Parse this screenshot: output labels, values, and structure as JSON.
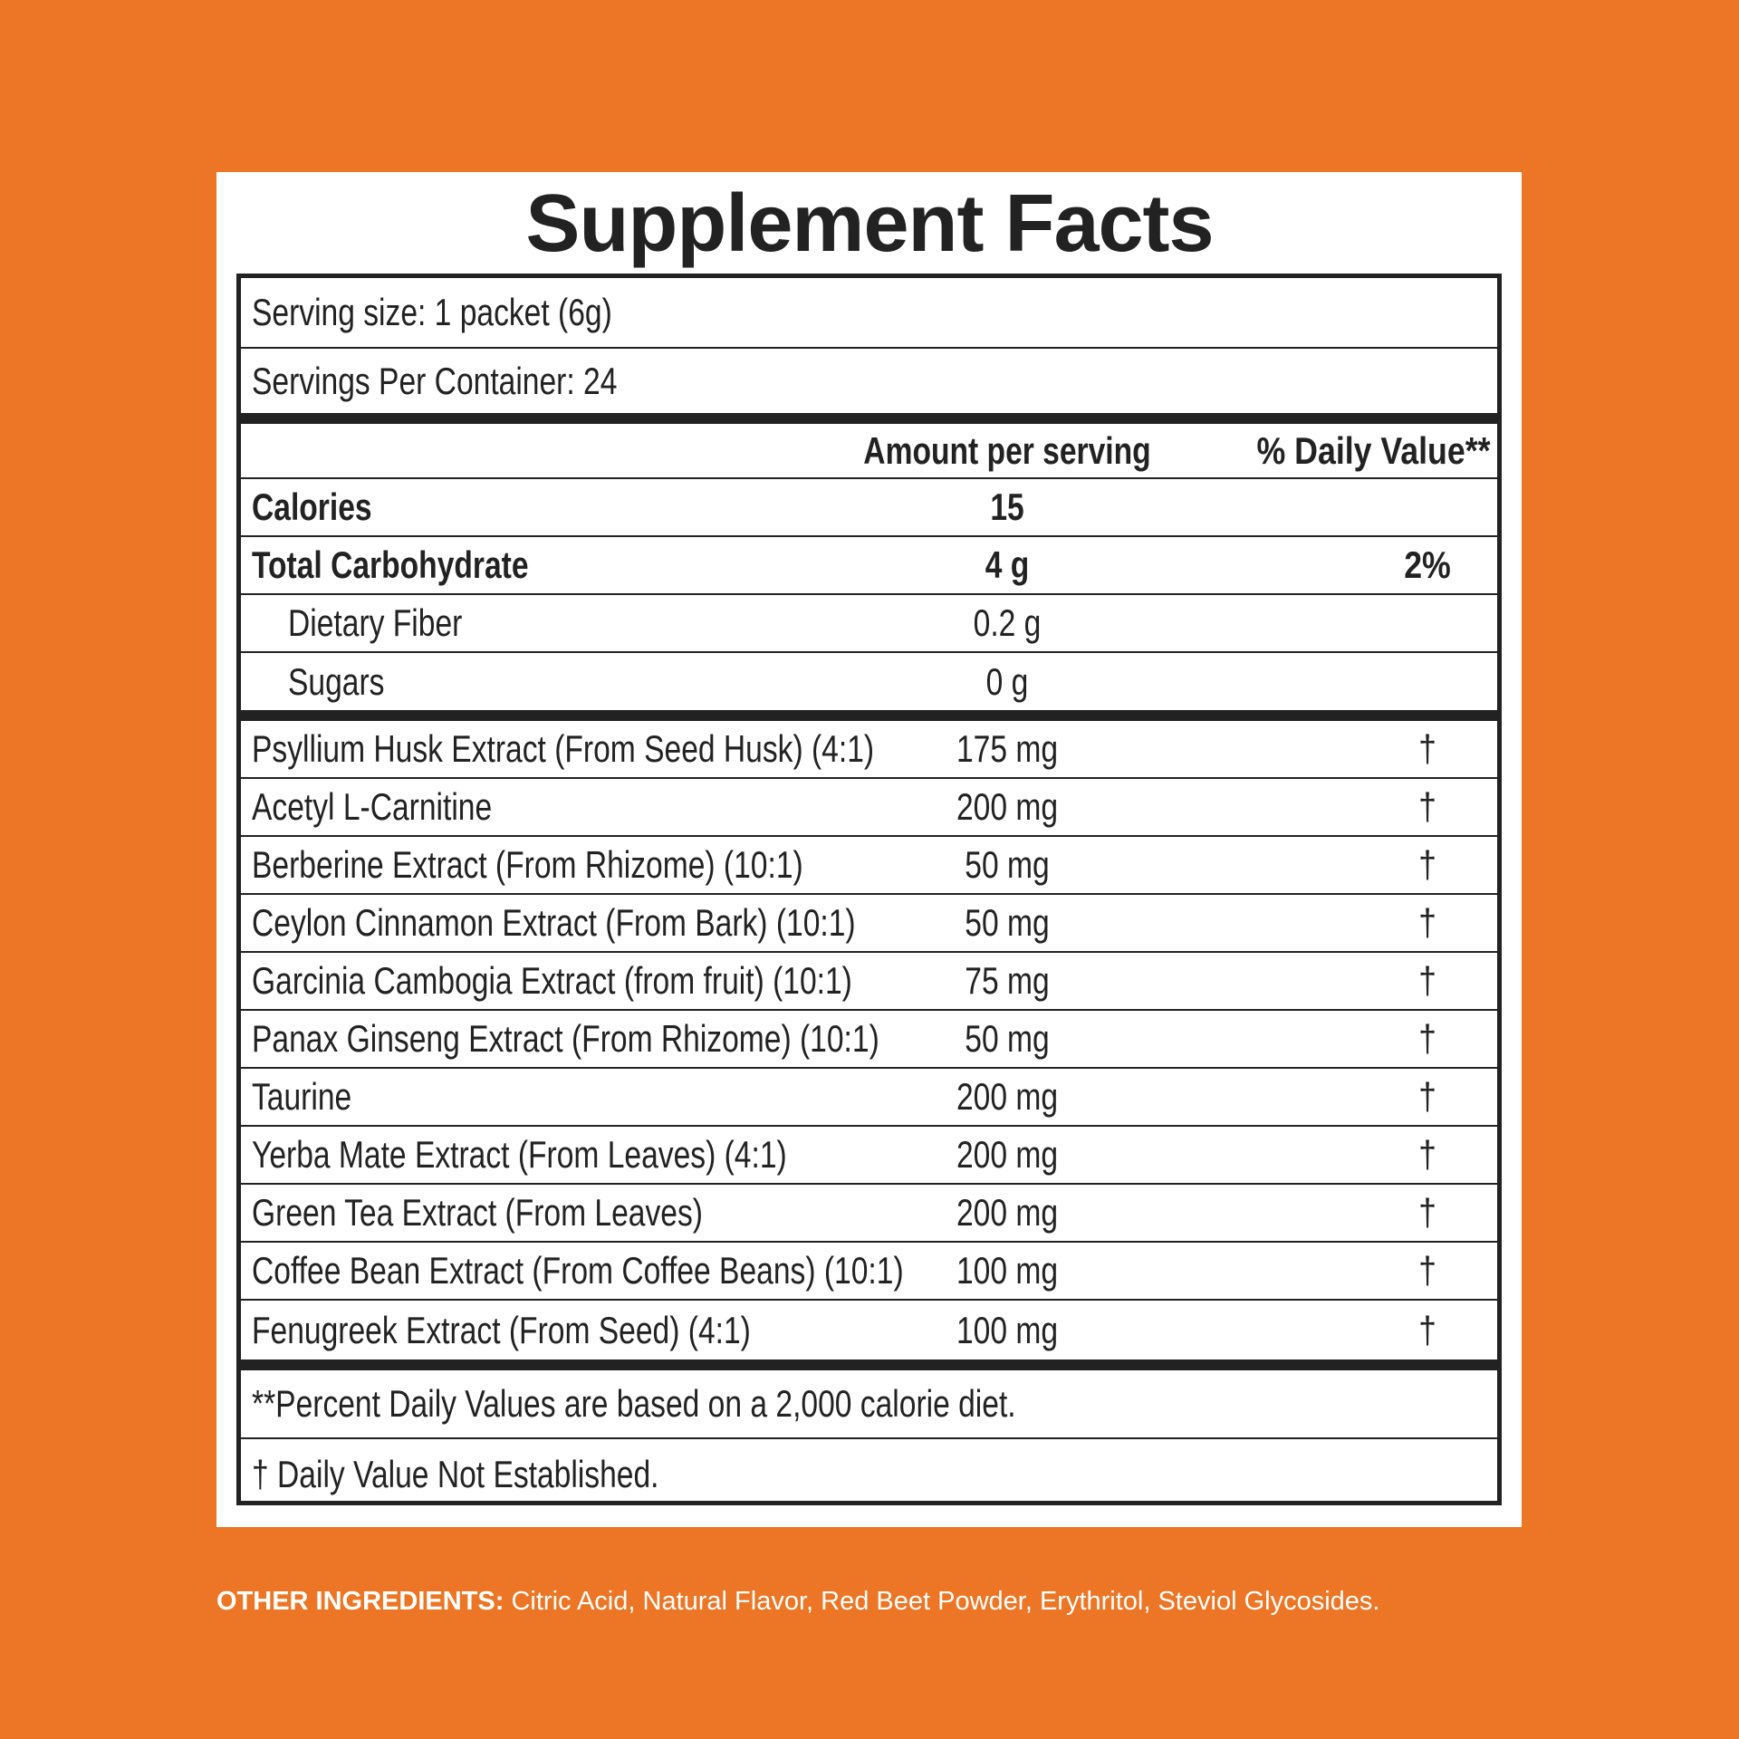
{
  "title": "Supplement Facts",
  "serving_size": "Serving size: 1 packet (6g)",
  "servings_per_container": "Servings Per Container: 24",
  "header": {
    "amount": "Amount per serving",
    "daily_value": "% Daily Value**"
  },
  "nutrients": [
    {
      "name": "Calories",
      "amount": "15",
      "indent": false
    },
    {
      "name": "Total Carbohydrate",
      "amount": "4 g",
      "daily_value": "2%",
      "indent": false
    },
    {
      "name": "Dietary Fiber",
      "amount": "0.2 g",
      "indent": true
    },
    {
      "name": "Sugars",
      "amount": "0 g",
      "indent": true
    }
  ],
  "ingredients": [
    {
      "name": "Psyllium Husk Extract (From Seed Husk) (4:1)",
      "amount": "175 mg",
      "daily_value": "†"
    },
    {
      "name": "Acetyl L-Carnitine",
      "amount": "200 mg",
      "daily_value": "†"
    },
    {
      "name": "Berberine Extract (From Rhizome) (10:1)",
      "amount": "50 mg",
      "daily_value": "†"
    },
    {
      "name": "Ceylon Cinnamon Extract (From Bark) (10:1)",
      "amount": "50 mg",
      "daily_value": "†"
    },
    {
      "name": "Garcinia Cambogia Extract (from fruit) (10:1)",
      "amount": "75 mg",
      "daily_value": "†"
    },
    {
      "name": "Panax Ginseng Extract (From Rhizome) (10:1)",
      "amount": "50 mg",
      "daily_value": "†"
    },
    {
      "name": "Taurine",
      "amount": "200 mg",
      "daily_value": "†"
    },
    {
      "name": "Yerba Mate Extract (From Leaves) (4:1)",
      "amount": "200 mg",
      "daily_value": "†"
    },
    {
      "name": "Green Tea Extract (From Leaves)",
      "amount": "200 mg",
      "daily_value": "†"
    },
    {
      "name": "Coffee Bean Extract (From Coffee Beans) (10:1)",
      "amount": "100 mg",
      "daily_value": "†"
    },
    {
      "name": "Fenugreek Extract (From Seed) (4:1)",
      "amount": "100 mg",
      "daily_value": "†"
    }
  ],
  "footnotes": [
    "**Percent Daily Values are based on a 2,000 calorie diet.",
    "† Daily Value Not Established."
  ],
  "other_ingredients": {
    "label": "OTHER INGREDIENTS:",
    "text": "Citric Acid, Natural Flavor, Red Beet Powder, Erythritol, Steviol Glycosides."
  }
}
